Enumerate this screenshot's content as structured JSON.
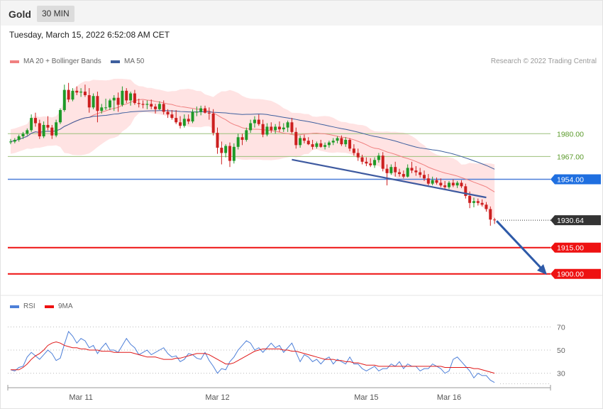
{
  "header": {
    "symbol": "Gold",
    "timeframe": "30 MIN"
  },
  "datetime": "Tuesday, March 15, 2022 6:52:08 AM CET",
  "legend_main": {
    "ma20": "MA 20 + Bollinger Bands",
    "ma50": "MA 50"
  },
  "legend_rsi": {
    "rsi": "RSI",
    "ma9": "9MA"
  },
  "credit": "Research © 2022 Trading Central",
  "colors": {
    "ma20": "#f08080",
    "ma50": "#3e5f9e",
    "up": "#1f9a28",
    "down": "#cc1f1f",
    "band": "#ffe3e3",
    "red_line": "#ee1111",
    "blue_line": "#4d7fd8",
    "green_line": "#9bc07a"
  },
  "chart_data": {
    "type": "candlestick",
    "main": {
      "ylim": [
        1893,
        2017
      ],
      "levels": [
        {
          "value": 1980,
          "label": "1980.00",
          "style": "green"
        },
        {
          "value": 1967,
          "label": "1967.00",
          "style": "green"
        },
        {
          "value": 1954,
          "label": "1954.00",
          "style": "blue"
        },
        {
          "value": 1930.64,
          "label": "1930.64",
          "style": "last"
        },
        {
          "value": 1915,
          "label": "1915.00",
          "style": "red"
        },
        {
          "value": 1900,
          "label": "1900.00",
          "style": "red"
        }
      ],
      "candles": [
        [
          1975.5,
          1977.0,
          1974.0,
          1975.5
        ],
        [
          1975.5,
          1977.5,
          1974.5,
          1976.5
        ],
        [
          1976.5,
          1979.5,
          1975.5,
          1978.5
        ],
        [
          1978.5,
          1981.0,
          1977.0,
          1980.0
        ],
        [
          1980.0,
          1983.0,
          1979.0,
          1982.0
        ],
        [
          1982.0,
          1991.0,
          1981.0,
          1989.0
        ],
        [
          1989.0,
          1992.0,
          1984.0,
          1986.0
        ],
        [
          1986.0,
          1988.0,
          1977.0,
          1978.5
        ],
        [
          1978.5,
          1987.0,
          1977.5,
          1985.0
        ],
        [
          1985.0,
          1990.0,
          1982.0,
          1983.5
        ],
        [
          1983.5,
          1985.0,
          1977.0,
          1979.0
        ],
        [
          1979.0,
          1988.0,
          1978.0,
          1986.5
        ],
        [
          1986.5,
          1994.5,
          1985.5,
          1993.5
        ],
        [
          1993.5,
          2008.0,
          1992.5,
          2005.0
        ],
        [
          2005.0,
          2009.0,
          1998.0,
          1999.5
        ],
        [
          1999.5,
          2006.0,
          1998.5,
          2004.5
        ],
        [
          2004.5,
          2007.0,
          2002.0,
          2003.5
        ],
        [
          2003.5,
          2006.0,
          2001.0,
          2004.0
        ],
        [
          2004.0,
          2008.0,
          2001.0,
          2002.0
        ],
        [
          2002.0,
          2006.0,
          1992.0,
          1995.0
        ],
        [
          1995.0,
          2003.0,
          1994.0,
          2001.5
        ],
        [
          2001.5,
          2004.0,
          1986.5,
          1993.0
        ],
        [
          1993.0,
          1997.0,
          1991.5,
          1995.0
        ],
        [
          1995.0,
          2000.0,
          1993.5,
          1995.0
        ],
        [
          1995.0,
          2000.0,
          1993.5,
          1999.0
        ],
        [
          1999.0,
          2002.0,
          1993.0,
          2000.5
        ],
        [
          2000.5,
          2003.5,
          1992.5,
          1996.5
        ],
        [
          1996.5,
          2007.0,
          1995.5,
          2004.5
        ],
        [
          2004.5,
          2006.0,
          1997.5,
          1999.0
        ],
        [
          1999.0,
          2004.0,
          1996.0,
          2003.0
        ],
        [
          2003.0,
          2005.0,
          1996.5,
          1997.5
        ],
        [
          1997.5,
          2000.0,
          1995.0,
          1997.0
        ],
        [
          1997.0,
          1999.0,
          1994.5,
          1996.5
        ],
        [
          1996.5,
          1999.0,
          1994.0,
          1997.0
        ],
        [
          1997.0,
          1999.5,
          1994.0,
          1995.5
        ],
        [
          1995.5,
          1997.0,
          1991.5,
          1994.0
        ],
        [
          1994.0,
          1998.5,
          1993.5,
          1997.0
        ],
        [
          1997.0,
          1999.0,
          1991.0,
          1992.5
        ],
        [
          1992.5,
          1994.0,
          1989.0,
          1991.0
        ],
        [
          1991.0,
          1993.5,
          1988.0,
          1989.0
        ],
        [
          1989.0,
          1993.5,
          1985.5,
          1986.5
        ],
        [
          1986.5,
          1990.0,
          1983.0,
          1984.5
        ],
        [
          1984.5,
          1991.0,
          1983.5,
          1988.5
        ],
        [
          1988.5,
          1991.0,
          1985.5,
          1987.0
        ],
        [
          1987.0,
          1994.0,
          1986.0,
          1992.5
        ],
        [
          1992.5,
          1995.5,
          1990.0,
          1992.5
        ],
        [
          1992.5,
          1996.0,
          1990.5,
          1994.5
        ],
        [
          1994.5,
          1996.0,
          1991.5,
          1992.0
        ],
        [
          1992.0,
          1995.0,
          1988.0,
          1991.5
        ],
        [
          1991.5,
          1994.0,
          1979.0,
          1980.5
        ],
        [
          1980.5,
          1983.5,
          1968.5,
          1972.0
        ],
        [
          1972.0,
          1975.5,
          1962.5,
          1969.0
        ],
        [
          1969.0,
          1974.0,
          1966.5,
          1973.0
        ],
        [
          1973.0,
          1975.0,
          1961.0,
          1964.5
        ],
        [
          1964.5,
          1974.5,
          1963.0,
          1972.5
        ],
        [
          1972.5,
          1980.0,
          1971.0,
          1978.0
        ],
        [
          1978.0,
          1980.0,
          1973.5,
          1976.5
        ],
        [
          1976.5,
          1983.5,
          1975.5,
          1982.0
        ],
        [
          1982.0,
          1988.0,
          1980.5,
          1986.0
        ],
        [
          1986.0,
          1990.0,
          1983.5,
          1988.0
        ],
        [
          1988.0,
          1991.0,
          1984.5,
          1985.5
        ],
        [
          1985.5,
          1988.0,
          1978.0,
          1979.5
        ],
        [
          1979.5,
          1986.0,
          1978.5,
          1984.0
        ],
        [
          1984.0,
          1986.5,
          1980.5,
          1982.0
        ],
        [
          1982.0,
          1985.5,
          1980.0,
          1984.0
        ],
        [
          1984.0,
          1987.0,
          1981.0,
          1982.5
        ],
        [
          1982.5,
          1986.0,
          1981.0,
          1983.5
        ],
        [
          1983.5,
          1987.5,
          1981.0,
          1986.5
        ],
        [
          1986.5,
          1989.0,
          1980.0,
          1981.0
        ],
        [
          1981.0,
          1983.5,
          1971.5,
          1973.5
        ],
        [
          1973.5,
          1979.0,
          1972.0,
          1977.5
        ],
        [
          1977.5,
          1979.5,
          1974.5,
          1976.0
        ],
        [
          1976.0,
          1978.0,
          1973.5,
          1974.0
        ],
        [
          1974.0,
          1976.5,
          1971.0,
          1972.5
        ],
        [
          1972.5,
          1975.5,
          1971.5,
          1974.5
        ],
        [
          1974.5,
          1976.5,
          1972.0,
          1972.5
        ],
        [
          1972.5,
          1975.0,
          1971.0,
          1973.5
        ],
        [
          1973.5,
          1976.0,
          1972.0,
          1975.0
        ],
        [
          1975.0,
          1977.5,
          1973.5,
          1976.0
        ],
        [
          1976.0,
          1978.5,
          1974.5,
          1977.5
        ],
        [
          1977.5,
          1979.0,
          1973.0,
          1974.0
        ],
        [
          1974.0,
          1978.0,
          1972.5,
          1976.5
        ],
        [
          1976.5,
          1977.5,
          1970.0,
          1971.5
        ],
        [
          1971.5,
          1974.0,
          1967.5,
          1969.0
        ],
        [
          1969.0,
          1971.5,
          1964.5,
          1966.5
        ],
        [
          1966.5,
          1968.0,
          1962.5,
          1964.0
        ],
        [
          1964.0,
          1966.5,
          1961.5,
          1963.0
        ],
        [
          1963.0,
          1966.0,
          1961.0,
          1962.0
        ],
        [
          1962.0,
          1966.5,
          1960.5,
          1965.0
        ],
        [
          1965.0,
          1969.0,
          1963.5,
          1967.5
        ],
        [
          1967.5,
          1969.5,
          1958.5,
          1960.0
        ],
        [
          1960.0,
          1962.5,
          1950.5,
          1957.5
        ],
        [
          1957.5,
          1962.5,
          1956.5,
          1961.0
        ],
        [
          1961.0,
          1964.0,
          1955.5,
          1958.0
        ],
        [
          1958.0,
          1960.0,
          1955.5,
          1957.0
        ],
        [
          1957.0,
          1959.0,
          1954.5,
          1955.5
        ],
        [
          1955.5,
          1962.5,
          1955.0,
          1960.5
        ],
        [
          1960.5,
          1964.0,
          1957.5,
          1959.0
        ],
        [
          1959.0,
          1961.5,
          1956.0,
          1958.0
        ],
        [
          1958.0,
          1960.5,
          1955.0,
          1956.5
        ],
        [
          1956.5,
          1959.0,
          1953.0,
          1954.5
        ],
        [
          1954.5,
          1957.0,
          1950.5,
          1951.5
        ],
        [
          1951.5,
          1955.5,
          1950.5,
          1953.5
        ],
        [
          1953.5,
          1955.0,
          1951.0,
          1952.0
        ],
        [
          1952.0,
          1954.5,
          1949.5,
          1950.5
        ],
        [
          1950.5,
          1953.0,
          1948.5,
          1949.5
        ],
        [
          1949.5,
          1953.0,
          1948.5,
          1952.0
        ],
        [
          1952.0,
          1954.0,
          1949.5,
          1950.5
        ],
        [
          1950.5,
          1953.0,
          1949.0,
          1952.0
        ],
        [
          1952.0,
          1953.5,
          1949.0,
          1950.0
        ],
        [
          1950.0,
          1951.5,
          1943.0,
          1944.5
        ],
        [
          1944.5,
          1947.0,
          1937.5,
          1940.5
        ],
        [
          1940.5,
          1943.5,
          1938.0,
          1941.5
        ],
        [
          1941.5,
          1943.0,
          1939.0,
          1940.5
        ],
        [
          1940.5,
          1942.5,
          1938.5,
          1939.5
        ],
        [
          1939.5,
          1941.0,
          1935.5,
          1937.0
        ],
        [
          1937.0,
          1938.5,
          1927.5,
          1931.0
        ],
        [
          1931.0,
          1932.0,
          1928.5,
          1930.64
        ]
      ],
      "trendline": {
        "from": [
          0.578,
          1965.2
        ],
        "to": [
          0.986,
          1943.6
        ]
      },
      "projection": {
        "from": [
          1930.2
        ],
        "to": [
          1899.5
        ]
      }
    },
    "rsi": {
      "ylim": [
        20,
        80
      ],
      "levels": [
        70,
        50,
        30
      ],
      "rsi": [
        33,
        32,
        35,
        36,
        44,
        48,
        45,
        42,
        46,
        50,
        47,
        41,
        43,
        55,
        66,
        62,
        56,
        60,
        58,
        52,
        54,
        47,
        52,
        56,
        50,
        50,
        48,
        54,
        60,
        55,
        52,
        46,
        48,
        50,
        46,
        48,
        50,
        52,
        47,
        44,
        45,
        40,
        42,
        47,
        46,
        43,
        42,
        48,
        41,
        36,
        30,
        34,
        33,
        40,
        44,
        50,
        54,
        58,
        56,
        50,
        52,
        48,
        52,
        56,
        52,
        54,
        48,
        52,
        56,
        48,
        40,
        46,
        44,
        40,
        42,
        38,
        42,
        44,
        38,
        42,
        40,
        38,
        44,
        38,
        38,
        34,
        32,
        34,
        36,
        32,
        34,
        34,
        38,
        36,
        40,
        34,
        38,
        36,
        36,
        32,
        34,
        34,
        38,
        36,
        34,
        30,
        32,
        42,
        44,
        40,
        36,
        32,
        26,
        30,
        28,
        28,
        24,
        22
      ],
      "ma9": [
        33,
        33,
        33,
        35,
        38,
        42,
        45,
        47,
        50,
        54,
        56,
        57,
        56,
        54,
        53,
        52,
        52,
        51,
        51,
        50,
        50,
        50,
        49,
        49,
        49,
        48,
        48,
        48,
        48,
        48,
        47,
        46,
        45,
        44,
        44,
        44,
        43,
        42,
        42,
        42,
        43,
        43,
        44,
        45,
        46,
        47,
        47,
        47,
        46,
        44,
        42,
        40,
        38,
        38,
        39,
        41,
        43,
        45,
        47,
        49,
        50,
        51,
        51,
        51,
        51,
        51,
        50,
        50,
        49,
        49,
        48,
        47,
        46,
        45,
        44,
        43,
        42,
        42,
        42,
        41,
        41,
        40,
        40,
        39,
        39,
        38,
        37,
        37,
        37,
        36,
        36,
        36,
        36,
        36,
        36,
        36,
        36,
        36,
        36,
        36,
        36,
        36,
        36,
        36,
        36,
        35,
        35,
        35,
        35,
        35,
        35,
        35,
        34,
        34,
        33,
        32,
        31,
        30
      ]
    },
    "x_ticks": [
      {
        "label": "Mar 11",
        "index": 17
      },
      {
        "label": "Mar 12",
        "index": 50
      },
      {
        "label": "Mar 15",
        "index": 86
      },
      {
        "label": "Mar 16",
        "index": 106
      }
    ],
    "rsi_labels": [
      "70",
      "50",
      "30"
    ]
  }
}
